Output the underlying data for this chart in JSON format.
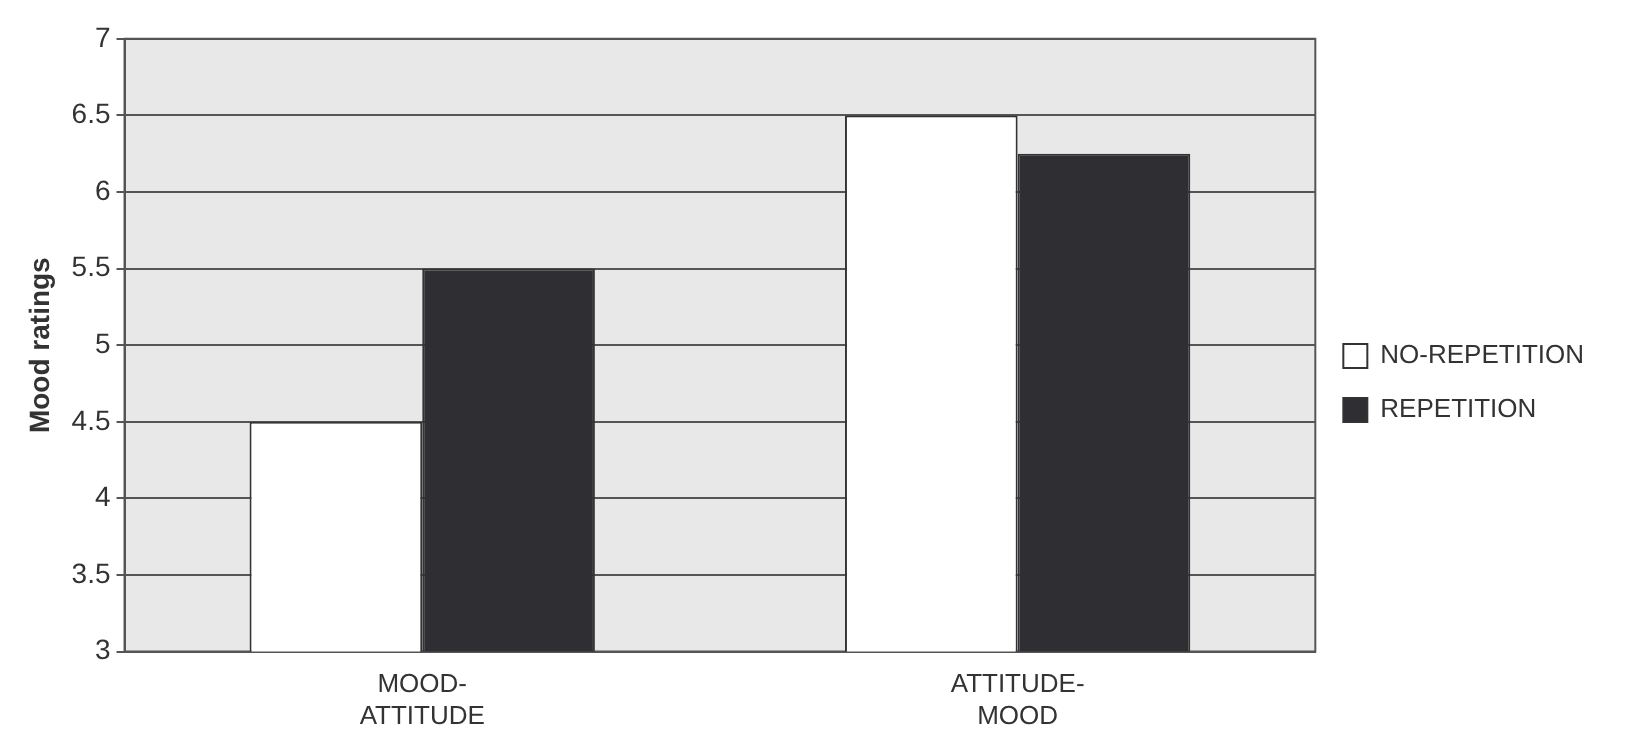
{
  "chart_data": {
    "type": "bar",
    "ylabel": "Mood ratings",
    "categories": [
      "MOOD-ATTITUDE",
      "ATTITUDE-MOOD"
    ],
    "series": [
      {
        "name": "NO-REPETITION",
        "color": "#ffffff",
        "values": [
          4.5,
          6.5
        ]
      },
      {
        "name": "REPETITION",
        "color": "#2e2e33",
        "values": [
          5.5,
          6.25
        ]
      }
    ],
    "ylim": [
      3,
      7
    ],
    "yticks": [
      3,
      3.5,
      4,
      4.5,
      5,
      5.5,
      6,
      6.5,
      7
    ],
    "grid": "y",
    "legend": "right"
  }
}
